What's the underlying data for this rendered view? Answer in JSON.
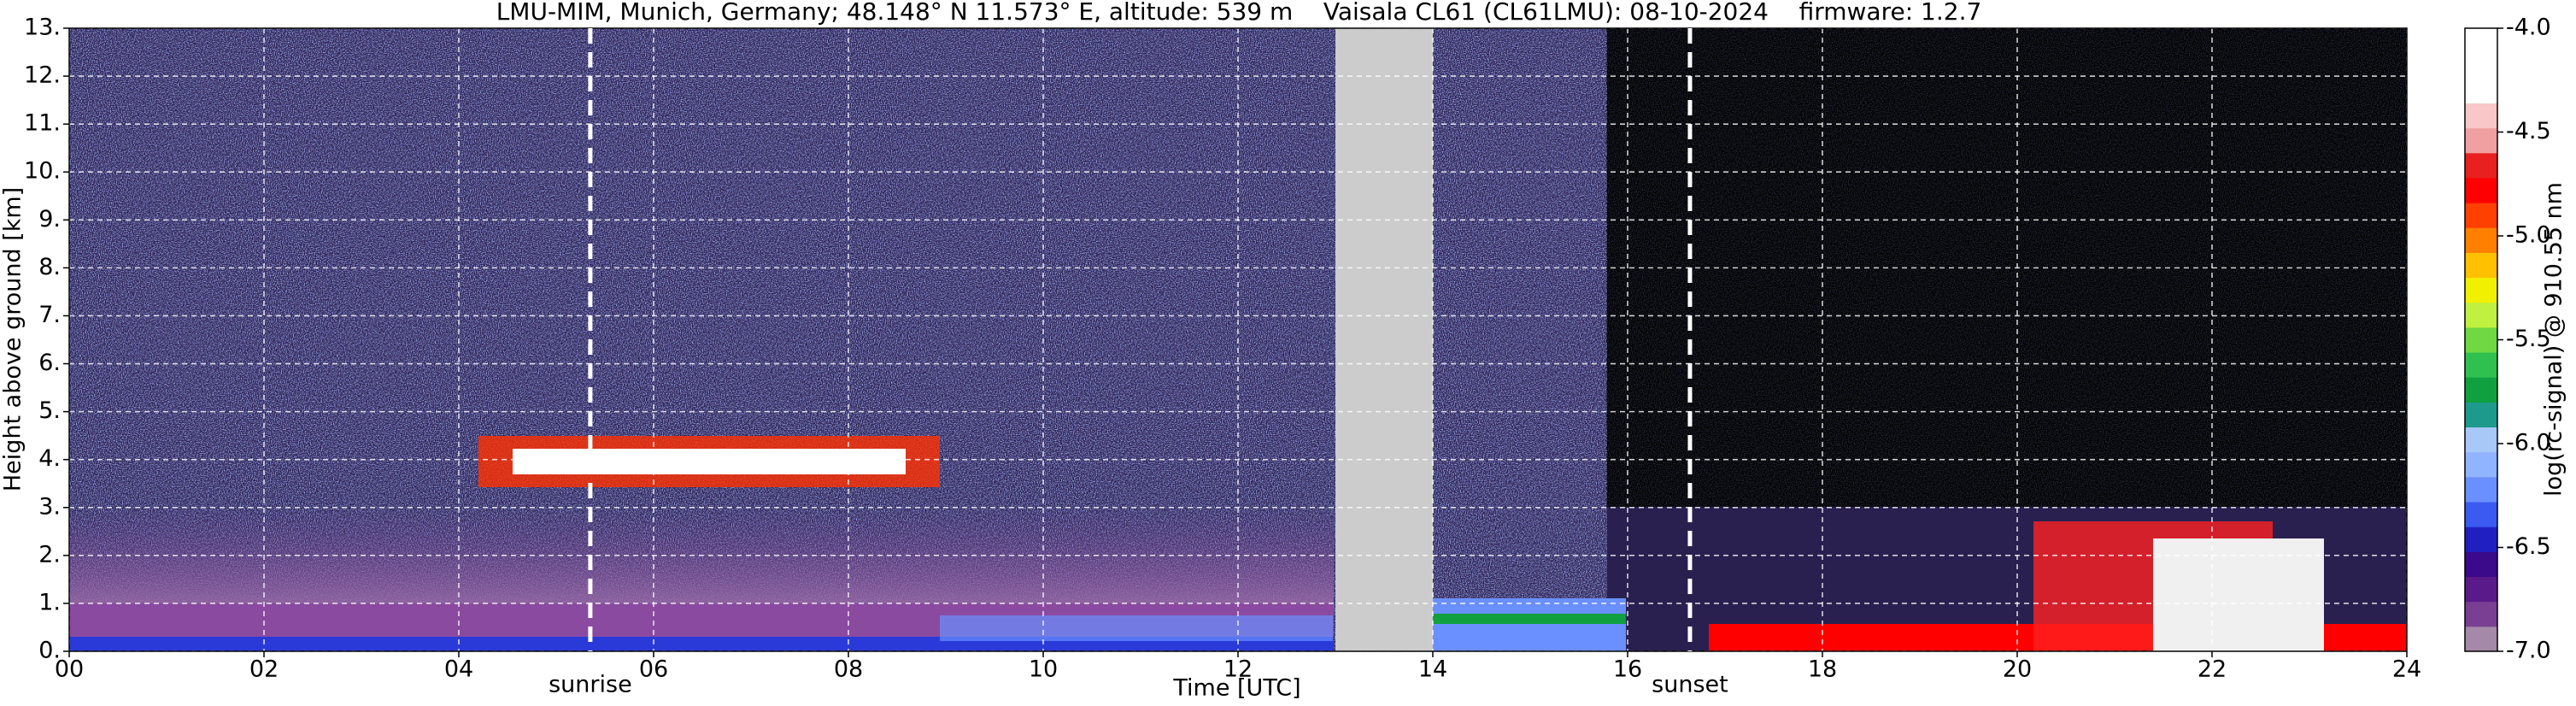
{
  "chart_data": {
    "type": "heatmap",
    "title": "LMU-MIM, Munich, Germany; 48.148° N 11.573° E, altitude: 539 m    Vaisala CL61 (CL61LMU): 08-10-2024    firmware: 1.2.7",
    "x_label": "Time [UTC]",
    "y_label": "Height above ground [km]",
    "colorbar_label": "log(rc-signal) @ 910.55 nm",
    "xlim": [
      0,
      24
    ],
    "xticks": [
      {
        "value": 0,
        "label": "00"
      },
      {
        "value": 2,
        "label": "02"
      },
      {
        "value": 4,
        "label": "04"
      },
      {
        "value": 6,
        "label": "06"
      },
      {
        "value": 8,
        "label": "08"
      },
      {
        "value": 10,
        "label": "10"
      },
      {
        "value": 12,
        "label": "12"
      },
      {
        "value": 14,
        "label": "14"
      },
      {
        "value": 16,
        "label": "16"
      },
      {
        "value": 18,
        "label": "18"
      },
      {
        "value": 20,
        "label": "20"
      },
      {
        "value": 22,
        "label": "22"
      },
      {
        "value": 24,
        "label": "24"
      }
    ],
    "ylim": [
      0,
      13
    ],
    "yticks": [
      {
        "value": 0,
        "label": "0."
      },
      {
        "value": 1,
        "label": "1."
      },
      {
        "value": 2,
        "label": "2."
      },
      {
        "value": 3,
        "label": "3."
      },
      {
        "value": 4,
        "label": "4."
      },
      {
        "value": 5,
        "label": "5."
      },
      {
        "value": 6,
        "label": "6."
      },
      {
        "value": 7,
        "label": "7."
      },
      {
        "value": 8,
        "label": "8."
      },
      {
        "value": 9,
        "label": "9."
      },
      {
        "value": 10,
        "label": "10."
      },
      {
        "value": 11,
        "label": "11."
      },
      {
        "value": 12,
        "label": "12."
      },
      {
        "value": 13,
        "label": "13."
      }
    ],
    "clim": [
      -7,
      -4
    ],
    "cticks": [
      {
        "value": -4,
        "label": "-4.0"
      },
      {
        "value": -4.5,
        "label": "-4.5"
      },
      {
        "value": -5,
        "label": "-5.0"
      },
      {
        "value": -5.5,
        "label": "-5.5"
      },
      {
        "value": -6,
        "label": "-6.0"
      },
      {
        "value": -6.5,
        "label": "-6.5"
      },
      {
        "value": -7,
        "label": "-7.0"
      }
    ],
    "colorscale": [
      "#a48aa8",
      "#7a3f92",
      "#5a1a8a",
      "#3a0a8a",
      "#2020c0",
      "#3a5af0",
      "#6a90ff",
      "#90b4ff",
      "#a8c8f8",
      "#1e9a8c",
      "#10a040",
      "#30c050",
      "#70d840",
      "#c0f040",
      "#f0f000",
      "#ffc000",
      "#ff8000",
      "#ff4000",
      "#ff0000",
      "#e82020",
      "#f0a0a0",
      "#f8c8c8",
      "#ffffff",
      "#ffffff",
      "#ffffff"
    ],
    "grid": true,
    "data_gap": [
      13,
      14
    ],
    "annotations": [
      {
        "text": "sunrise",
        "x": 5.35
      },
      {
        "text": "sunset",
        "x": 16.64
      }
    ]
  }
}
